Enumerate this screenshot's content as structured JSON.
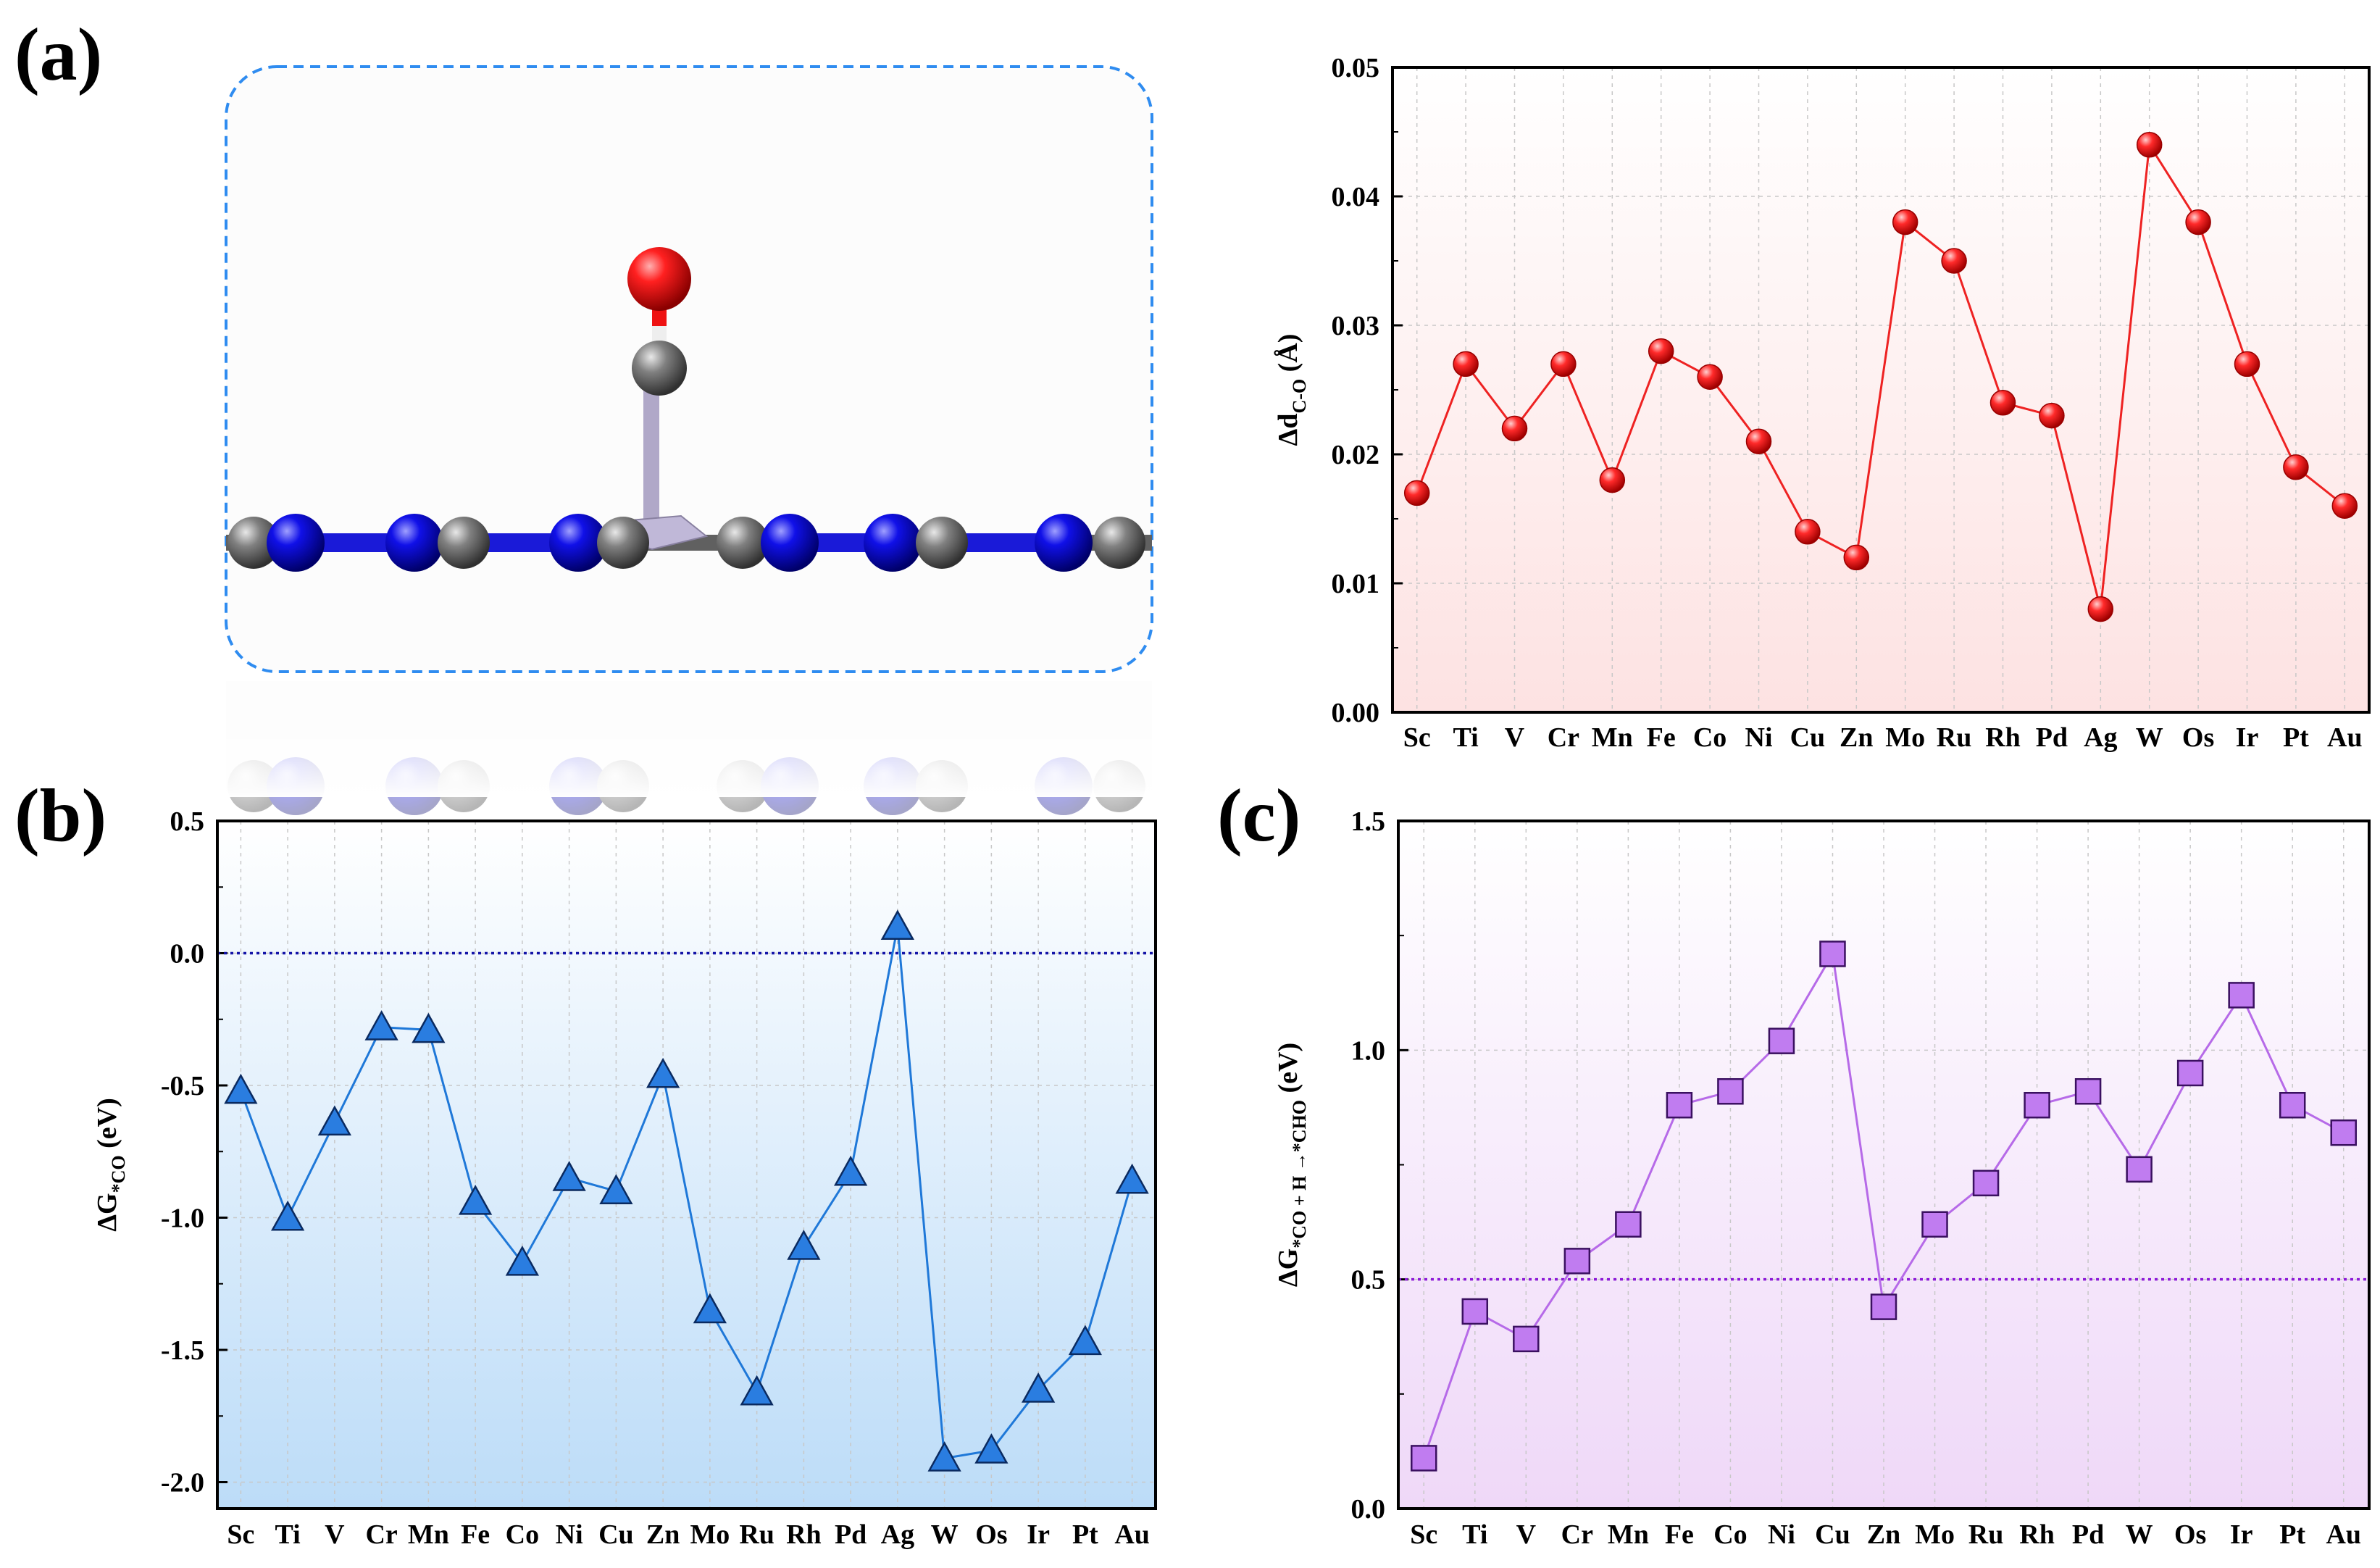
{
  "panels": {
    "a": "(a)",
    "b": "(b)",
    "c": "(c)"
  },
  "molecule_colors": {
    "carbon": "#7a7a7a",
    "nitrogen": "#1010e0",
    "oxygen": "#ee0000",
    "metal": "#b0a8c8",
    "frame": "#2f8cf0"
  },
  "chart_data": [
    {
      "id": "a",
      "type": "line",
      "categories": [
        "Sc",
        "Ti",
        "V",
        "Cr",
        "Mn",
        "Fe",
        "Co",
        "Ni",
        "Cu",
        "Zn",
        "Mo",
        "Ru",
        "Rh",
        "Pd",
        "Ag",
        "W",
        "Os",
        "Ir",
        "Pt",
        "Au"
      ],
      "values": [
        0.017,
        0.027,
        0.022,
        0.027,
        0.018,
        0.028,
        0.026,
        0.021,
        0.014,
        0.012,
        0.038,
        0.035,
        0.024,
        0.023,
        0.008,
        0.044,
        0.038,
        0.027,
        0.019,
        0.016
      ],
      "ylabel_main": "Δd",
      "ylabel_sub": "C-O",
      "ylabel_unit": " (Å)",
      "yticks": [
        "0.00",
        "0.01",
        "0.02",
        "0.03",
        "0.04",
        "0.05"
      ],
      "ylim": [
        0,
        0.05
      ],
      "marker": "circle",
      "color": "#ee2222",
      "grid": true
    },
    {
      "id": "b",
      "type": "line",
      "categories": [
        "Sc",
        "Ti",
        "V",
        "Cr",
        "Mn",
        "Fe",
        "Co",
        "Ni",
        "Cu",
        "Zn",
        "Mo",
        "Ru",
        "Rh",
        "Pd",
        "Ag",
        "W",
        "Os",
        "Ir",
        "Pt",
        "Au"
      ],
      "values": [
        -0.52,
        -1.0,
        -0.64,
        -0.28,
        -0.29,
        -0.94,
        -1.17,
        -0.85,
        -0.9,
        -0.46,
        -1.35,
        -1.66,
        -1.11,
        -0.83,
        0.1,
        -1.91,
        -1.88,
        -1.65,
        -1.47,
        -0.86
      ],
      "ylabel_main": "ΔG",
      "ylabel_sub": "*CO",
      "ylabel_unit": " (eV)",
      "yticks": [
        "-2.0",
        "-1.5",
        "-1.0",
        "-0.5",
        "0.0",
        "0.5"
      ],
      "ylim": [
        -2.1,
        0.5
      ],
      "reference_line": 0.0,
      "marker": "triangle",
      "color": "#1f78d8",
      "grid": true
    },
    {
      "id": "c",
      "type": "line",
      "categories": [
        "Sc",
        "Ti",
        "V",
        "Cr",
        "Mn",
        "Fe",
        "Co",
        "Ni",
        "Cu",
        "Zn",
        "Mo",
        "Ru",
        "Rh",
        "Pd",
        "W",
        "Os",
        "Ir",
        "Pt",
        "Au"
      ],
      "values": [
        0.11,
        0.43,
        0.37,
        0.54,
        0.62,
        0.88,
        0.91,
        1.02,
        1.21,
        0.44,
        0.62,
        0.71,
        0.88,
        0.91,
        0.74,
        0.95,
        1.12,
        0.88,
        0.82
      ],
      "ylabel_main": "ΔG",
      "ylabel_sub": "*CO + H →*CHO",
      "ylabel_unit": " (eV)",
      "yticks": [
        "0.0",
        "0.5",
        "1.0",
        "1.5"
      ],
      "ylim": [
        0,
        1.5
      ],
      "reference_line": 0.5,
      "marker": "square",
      "color": "#b66ae8",
      "grid": true
    }
  ]
}
